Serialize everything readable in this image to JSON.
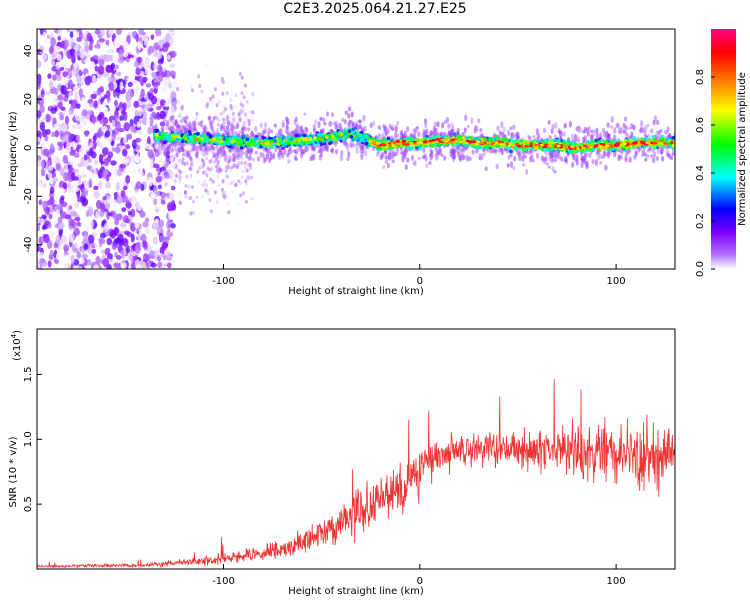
{
  "title": "C2E3.2025.064.21.27.E25",
  "chart_data": [
    {
      "type": "heatmap",
      "xlabel": "Height of straight line (km)",
      "ylabel": "Frequency (Hz)",
      "xlim": [
        -195,
        130
      ],
      "ylim": [
        -50,
        49
      ],
      "xticks": [
        -100,
        0,
        100
      ],
      "yticks": [
        -40,
        -20,
        0,
        20,
        40
      ],
      "xtick_labels": [
        "-100",
        "0",
        "100"
      ],
      "ytick_labels": [
        "-40",
        "-20",
        "0",
        "20",
        "40"
      ],
      "grid": false,
      "colorbar": {
        "label": "Normalized spectral amplitude",
        "range": [
          0,
          1
        ],
        "ticks": [
          0.0,
          0.2,
          0.4,
          0.6,
          0.8
        ],
        "tick_labels": [
          "0.0",
          "0.2",
          "0.4",
          "0.6",
          "0.8"
        ],
        "colormap": [
          "#ffffff",
          "#7f00ff",
          "#0000ff",
          "#00ffff",
          "#00ff00",
          "#ffff00",
          "#ff8000",
          "#ff0000",
          "#ff0080"
        ]
      },
      "noise_region": {
        "x_range": [
          -195,
          -125
        ],
        "frequency_spread": 50
      },
      "ridge": {
        "x": [
          -135,
          -120,
          -100,
          -80,
          -60,
          -45,
          -35,
          -20,
          -10,
          0,
          10,
          20,
          30,
          40,
          50,
          60,
          70,
          80,
          90,
          100,
          110,
          120,
          130
        ],
        "frequency": [
          5,
          4,
          3,
          2,
          3,
          4,
          6,
          1,
          2,
          2,
          3,
          3,
          2,
          2,
          1,
          1,
          1,
          0,
          1,
          1,
          2,
          2,
          2
        ]
      }
    },
    {
      "type": "line",
      "xlabel": "Height of straight line (km)",
      "ylabel": "SNR (10 * v/v)",
      "scale_note": "(x10",
      "scale_exponent": "4",
      "xlim": [
        -195,
        130
      ],
      "ylim": [
        0,
        1.85
      ],
      "xticks": [
        -100,
        0,
        100
      ],
      "yticks": [
        0.5,
        1.0,
        1.5
      ],
      "xtick_labels": [
        "-100",
        "0",
        "100"
      ],
      "ytick_labels": [
        "0.5",
        "1.0",
        "1.5"
      ],
      "grid": false,
      "color": "#ee3333",
      "envelope": {
        "x": [
          -195,
          -140,
          -120,
          -100,
          -80,
          -60,
          -45,
          -30,
          -15,
          -5,
          5,
          20,
          40,
          60,
          80,
          100,
          115,
          130
        ],
        "mean": [
          0.02,
          0.03,
          0.05,
          0.08,
          0.12,
          0.2,
          0.33,
          0.45,
          0.58,
          0.7,
          0.82,
          0.9,
          0.93,
          0.92,
          0.9,
          0.88,
          0.88,
          0.9
        ],
        "spread": [
          0.01,
          0.015,
          0.03,
          0.05,
          0.07,
          0.1,
          0.14,
          0.2,
          0.24,
          0.22,
          0.18,
          0.15,
          0.14,
          0.17,
          0.22,
          0.28,
          0.32,
          0.28
        ]
      }
    }
  ]
}
